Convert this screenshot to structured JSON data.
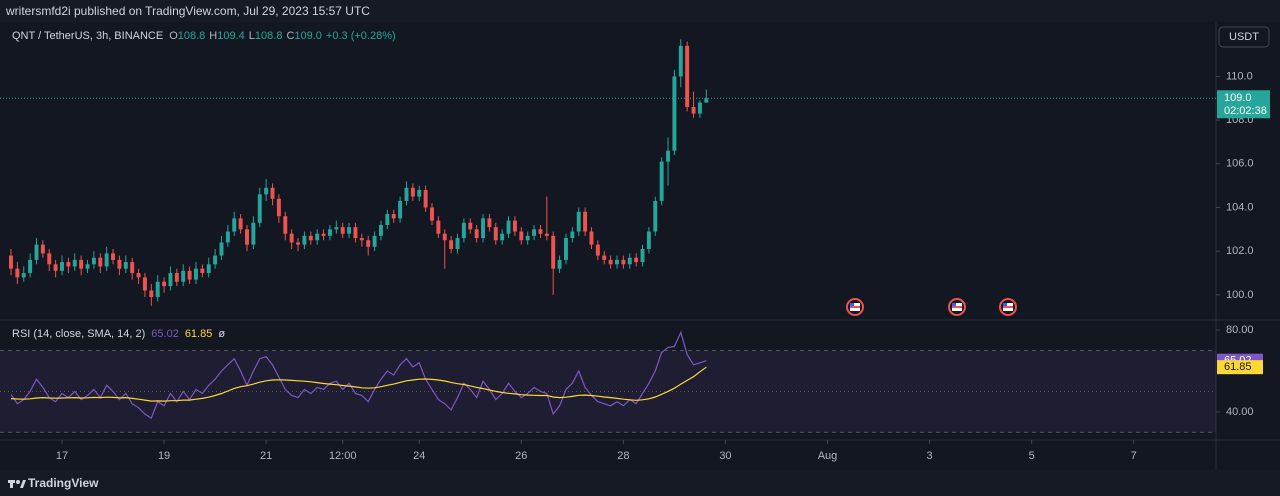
{
  "header": {
    "publisher": "writersmfd2i published on TradingView.com, Jul 29, 2023 15:57 UTC",
    "currency_button": "USDT",
    "countdown": "02:02:38",
    "footer": "TradingView"
  },
  "chart_data": [
    {
      "type": "candlestick",
      "title": "QNT / TetherUS, 3h, BINANCE",
      "legend_ohlc": [
        {
          "key": "O",
          "value": "108.8"
        },
        {
          "key": "H",
          "value": "109.4"
        },
        {
          "key": "L",
          "value": "108.8"
        },
        {
          "key": "C",
          "value": "109.0"
        }
      ],
      "change": "+0.3 (+0.28%)",
      "up_color": "#26a69a",
      "down_color": "#ef5350",
      "last_price_label": "109.0",
      "ylim": [
        98.85,
        112.49
      ],
      "yticks": [
        {
          "value": 100,
          "label": "100.0"
        },
        {
          "value": 102,
          "label": "102.0"
        },
        {
          "value": 104,
          "label": "104.0"
        },
        {
          "value": 106,
          "label": "106.0"
        },
        {
          "value": 108,
          "label": "108.0"
        },
        {
          "value": 110,
          "label": "110.0"
        }
      ],
      "ohlc": [
        [
          101.8,
          102.1,
          100.9,
          101.2
        ],
        [
          101.2,
          101.5,
          100.5,
          100.8
        ],
        [
          100.8,
          101.3,
          100.6,
          101.0
        ],
        [
          101.0,
          101.9,
          100.8,
          101.6
        ],
        [
          101.6,
          102.6,
          101.4,
          102.3
        ],
        [
          102.3,
          102.5,
          101.7,
          101.9
        ],
        [
          101.9,
          102.1,
          101.1,
          101.4
        ],
        [
          101.4,
          101.6,
          100.8,
          101.1
        ],
        [
          101.1,
          101.8,
          100.9,
          101.5
        ],
        [
          101.5,
          101.7,
          101.0,
          101.3
        ],
        [
          101.3,
          101.9,
          101.1,
          101.6
        ],
        [
          101.6,
          101.8,
          100.9,
          101.2
        ],
        [
          101.2,
          101.6,
          101.0,
          101.4
        ],
        [
          101.4,
          102.0,
          101.2,
          101.7
        ],
        [
          101.7,
          101.9,
          101.0,
          101.3
        ],
        [
          101.3,
          102.2,
          101.1,
          101.9
        ],
        [
          101.9,
          102.1,
          101.4,
          101.6
        ],
        [
          101.6,
          101.8,
          100.9,
          101.2
        ],
        [
          101.2,
          101.8,
          101.0,
          101.5
        ],
        [
          101.5,
          101.7,
          100.7,
          101.0
        ],
        [
          101.0,
          101.2,
          100.5,
          100.8
        ],
        [
          100.8,
          101.0,
          99.9,
          100.2
        ],
        [
          100.2,
          100.5,
          99.5,
          99.9
        ],
        [
          99.9,
          100.9,
          99.7,
          100.6
        ],
        [
          100.6,
          100.8,
          100.1,
          100.4
        ],
        [
          100.4,
          101.3,
          100.2,
          101.0
        ],
        [
          101.0,
          101.2,
          100.4,
          100.6
        ],
        [
          100.6,
          101.4,
          100.4,
          101.1
        ],
        [
          101.1,
          101.3,
          100.5,
          100.7
        ],
        [
          100.7,
          101.5,
          100.5,
          101.2
        ],
        [
          101.2,
          101.4,
          100.8,
          101.0
        ],
        [
          101.0,
          101.7,
          100.8,
          101.4
        ],
        [
          101.4,
          102.1,
          101.2,
          101.8
        ],
        [
          101.8,
          102.7,
          101.6,
          102.4
        ],
        [
          102.4,
          103.2,
          102.2,
          102.9
        ],
        [
          102.9,
          103.8,
          102.7,
          103.5
        ],
        [
          103.5,
          103.7,
          102.8,
          103.0
        ],
        [
          103.0,
          103.2,
          102.0,
          102.3
        ],
        [
          102.3,
          103.6,
          102.1,
          103.3
        ],
        [
          103.3,
          104.9,
          103.1,
          104.6
        ],
        [
          104.6,
          105.3,
          104.3,
          104.9
        ],
        [
          104.9,
          105.1,
          104.1,
          104.4
        ],
        [
          104.4,
          104.6,
          103.3,
          103.6
        ],
        [
          103.6,
          103.8,
          102.5,
          102.8
        ],
        [
          102.8,
          103.0,
          102.1,
          102.4
        ],
        [
          102.4,
          102.6,
          102.0,
          102.3
        ],
        [
          102.3,
          102.9,
          102.1,
          102.7
        ],
        [
          102.7,
          102.9,
          102.3,
          102.5
        ],
        [
          102.5,
          103.0,
          102.3,
          102.8
        ],
        [
          102.8,
          103.0,
          102.5,
          102.7
        ],
        [
          102.7,
          103.2,
          102.5,
          103.0
        ],
        [
          103.0,
          103.4,
          102.8,
          103.1
        ],
        [
          103.1,
          103.3,
          102.6,
          102.8
        ],
        [
          102.8,
          103.3,
          102.6,
          103.1
        ],
        [
          103.1,
          103.3,
          102.4,
          102.6
        ],
        [
          102.6,
          102.8,
          102.2,
          102.5
        ],
        [
          102.5,
          102.7,
          101.8,
          102.2
        ],
        [
          102.2,
          102.9,
          102.0,
          102.7
        ],
        [
          102.7,
          103.4,
          102.5,
          103.2
        ],
        [
          103.2,
          103.9,
          103.0,
          103.7
        ],
        [
          103.7,
          103.9,
          103.3,
          103.5
        ],
        [
          103.5,
          104.5,
          103.3,
          104.3
        ],
        [
          104.3,
          105.2,
          104.1,
          104.9
        ],
        [
          104.9,
          105.1,
          104.3,
          104.5
        ],
        [
          104.5,
          105.0,
          104.3,
          104.8
        ],
        [
          104.8,
          105.0,
          103.8,
          104.0
        ],
        [
          104.0,
          104.2,
          103.2,
          103.4
        ],
        [
          103.4,
          103.6,
          102.6,
          102.8
        ],
        [
          102.8,
          103.0,
          101.2,
          102.5
        ],
        [
          102.5,
          102.7,
          101.9,
          102.1
        ],
        [
          102.1,
          102.8,
          101.9,
          102.6
        ],
        [
          102.6,
          103.5,
          102.4,
          103.3
        ],
        [
          103.3,
          103.5,
          102.8,
          103.0
        ],
        [
          103.0,
          103.2,
          102.4,
          102.6
        ],
        [
          102.6,
          103.7,
          102.4,
          103.5
        ],
        [
          103.5,
          103.7,
          102.9,
          103.1
        ],
        [
          103.1,
          103.3,
          102.3,
          102.5
        ],
        [
          102.5,
          103.0,
          102.3,
          102.8
        ],
        [
          102.8,
          103.6,
          102.6,
          103.4
        ],
        [
          103.4,
          103.6,
          102.7,
          102.9
        ],
        [
          102.9,
          103.1,
          102.3,
          102.5
        ],
        [
          102.5,
          102.9,
          102.3,
          102.7
        ],
        [
          102.7,
          103.2,
          102.5,
          103.0
        ],
        [
          103.0,
          103.2,
          102.6,
          102.8
        ],
        [
          102.8,
          104.5,
          102.5,
          102.7
        ],
        [
          102.7,
          102.9,
          100.0,
          101.2
        ],
        [
          101.2,
          101.8,
          101.0,
          101.6
        ],
        [
          101.6,
          102.8,
          101.4,
          102.6
        ],
        [
          102.6,
          103.1,
          102.4,
          102.9
        ],
        [
          102.9,
          104.0,
          102.7,
          103.8
        ],
        [
          103.8,
          104.0,
          102.7,
          102.9
        ],
        [
          102.9,
          103.1,
          102.1,
          102.3
        ],
        [
          102.3,
          102.5,
          101.6,
          101.8
        ],
        [
          101.8,
          102.0,
          101.4,
          101.6
        ],
        [
          101.6,
          101.8,
          101.2,
          101.4
        ],
        [
          101.4,
          101.8,
          101.2,
          101.6
        ],
        [
          101.6,
          101.8,
          101.2,
          101.4
        ],
        [
          101.4,
          101.9,
          101.2,
          101.7
        ],
        [
          101.7,
          101.9,
          101.3,
          101.5
        ],
        [
          101.5,
          102.3,
          101.3,
          102.1
        ],
        [
          102.1,
          103.1,
          101.9,
          102.9
        ],
        [
          102.9,
          104.5,
          102.7,
          104.3
        ],
        [
          104.3,
          106.3,
          104.1,
          106.1
        ],
        [
          106.1,
          107.2,
          105.0,
          106.6
        ],
        [
          106.6,
          110.3,
          106.4,
          110.0
        ],
        [
          110.0,
          111.7,
          109.5,
          111.4
        ],
        [
          111.4,
          111.6,
          108.4,
          108.6
        ],
        [
          108.6,
          109.3,
          108.1,
          108.3
        ],
        [
          108.3,
          108.9,
          108.1,
          108.8
        ],
        [
          108.8,
          109.4,
          108.8,
          109.0
        ]
      ]
    },
    {
      "type": "line",
      "title": "RSI (14, close, SMA, 14, 2)",
      "extra": "ø",
      "ylim": [
        26.3,
        83.9
      ],
      "yticks": [
        {
          "value": 80,
          "label": "80.00"
        },
        {
          "value": 40,
          "label": "40.00"
        }
      ],
      "band_levels": [
        70,
        50,
        30
      ],
      "band_color": "#7e57c2",
      "xlim": [
        -1.72,
        188.9
      ],
      "xticks": [
        {
          "value": 8,
          "label": "17"
        },
        {
          "value": 24,
          "label": "19"
        },
        {
          "value": 40,
          "label": "21"
        },
        {
          "value": 52,
          "label": "12:00"
        },
        {
          "value": 64,
          "label": "24"
        },
        {
          "value": 80,
          "label": "26"
        },
        {
          "value": 96,
          "label": "28"
        },
        {
          "value": 112,
          "label": "30"
        },
        {
          "value": 128,
          "label": "Aug"
        },
        {
          "value": 144,
          "label": "3"
        },
        {
          "value": 160,
          "label": "5"
        },
        {
          "value": 176,
          "label": "7"
        }
      ],
      "series": [
        {
          "color": "#7e57c2",
          "values": [
            48.5,
            44,
            46,
            50,
            56,
            52,
            47,
            45,
            49,
            47,
            50,
            46,
            48,
            51,
            47,
            53,
            50,
            46,
            49,
            44,
            42,
            39,
            37,
            45,
            43,
            49,
            45,
            50,
            46,
            51,
            49,
            53,
            56,
            60,
            63,
            66,
            60,
            53,
            60,
            66,
            67,
            63,
            57,
            51,
            48,
            47,
            51,
            49,
            52,
            51,
            54,
            55,
            51,
            54,
            49,
            48,
            45,
            51,
            56,
            60,
            58,
            63,
            66,
            62,
            64,
            56,
            51,
            46,
            44,
            41,
            47,
            54,
            51,
            47,
            55,
            51,
            46,
            49,
            54,
            50,
            47,
            49,
            52,
            50,
            49,
            39,
            43,
            51,
            54,
            60,
            52,
            48,
            45,
            44,
            43,
            45,
            43,
            46,
            44,
            49,
            54,
            60,
            69,
            71.5,
            72,
            78.8,
            68,
            63,
            64,
            65.02
          ]
        },
        {
          "color": "#fdd835",
          "values": [
            46.5,
            46.3,
            46.2,
            46.4,
            46.8,
            47.0,
            46.8,
            46.7,
            46.8,
            46.9,
            47.0,
            46.8,
            46.9,
            47.1,
            47.0,
            47.2,
            47.1,
            46.9,
            47.0,
            46.6,
            46.2,
            45.8,
            45.3,
            45.4,
            45.3,
            45.5,
            45.5,
            45.8,
            45.8,
            46.2,
            46.6,
            47.2,
            48.0,
            49.0,
            50.2,
            51.5,
            52.3,
            52.8,
            53.6,
            54.5,
            55.2,
            55.6,
            55.7,
            55.6,
            55.4,
            55.2,
            55.0,
            54.7,
            54.3,
            53.9,
            53.6,
            53.3,
            52.9,
            52.6,
            52.2,
            51.8,
            51.6,
            51.8,
            52.3,
            53.0,
            53.6,
            54.4,
            55.2,
            55.6,
            56.0,
            56.1,
            55.9,
            55.6,
            55.1,
            54.4,
            53.8,
            53.4,
            52.7,
            52.0,
            51.4,
            50.7,
            50.0,
            49.5,
            49.1,
            48.8,
            48.4,
            48.2,
            48.1,
            48.0,
            48.0,
            47.3,
            47.0,
            47.2,
            47.6,
            48.1,
            48.2,
            48.0,
            47.7,
            47.3,
            47.0,
            46.6,
            46.2,
            45.9,
            45.7,
            45.9,
            46.4,
            47.3,
            48.6,
            50.0,
            51.6,
            53.6,
            55.4,
            57.2,
            59.6,
            61.85
          ]
        }
      ]
    }
  ]
}
